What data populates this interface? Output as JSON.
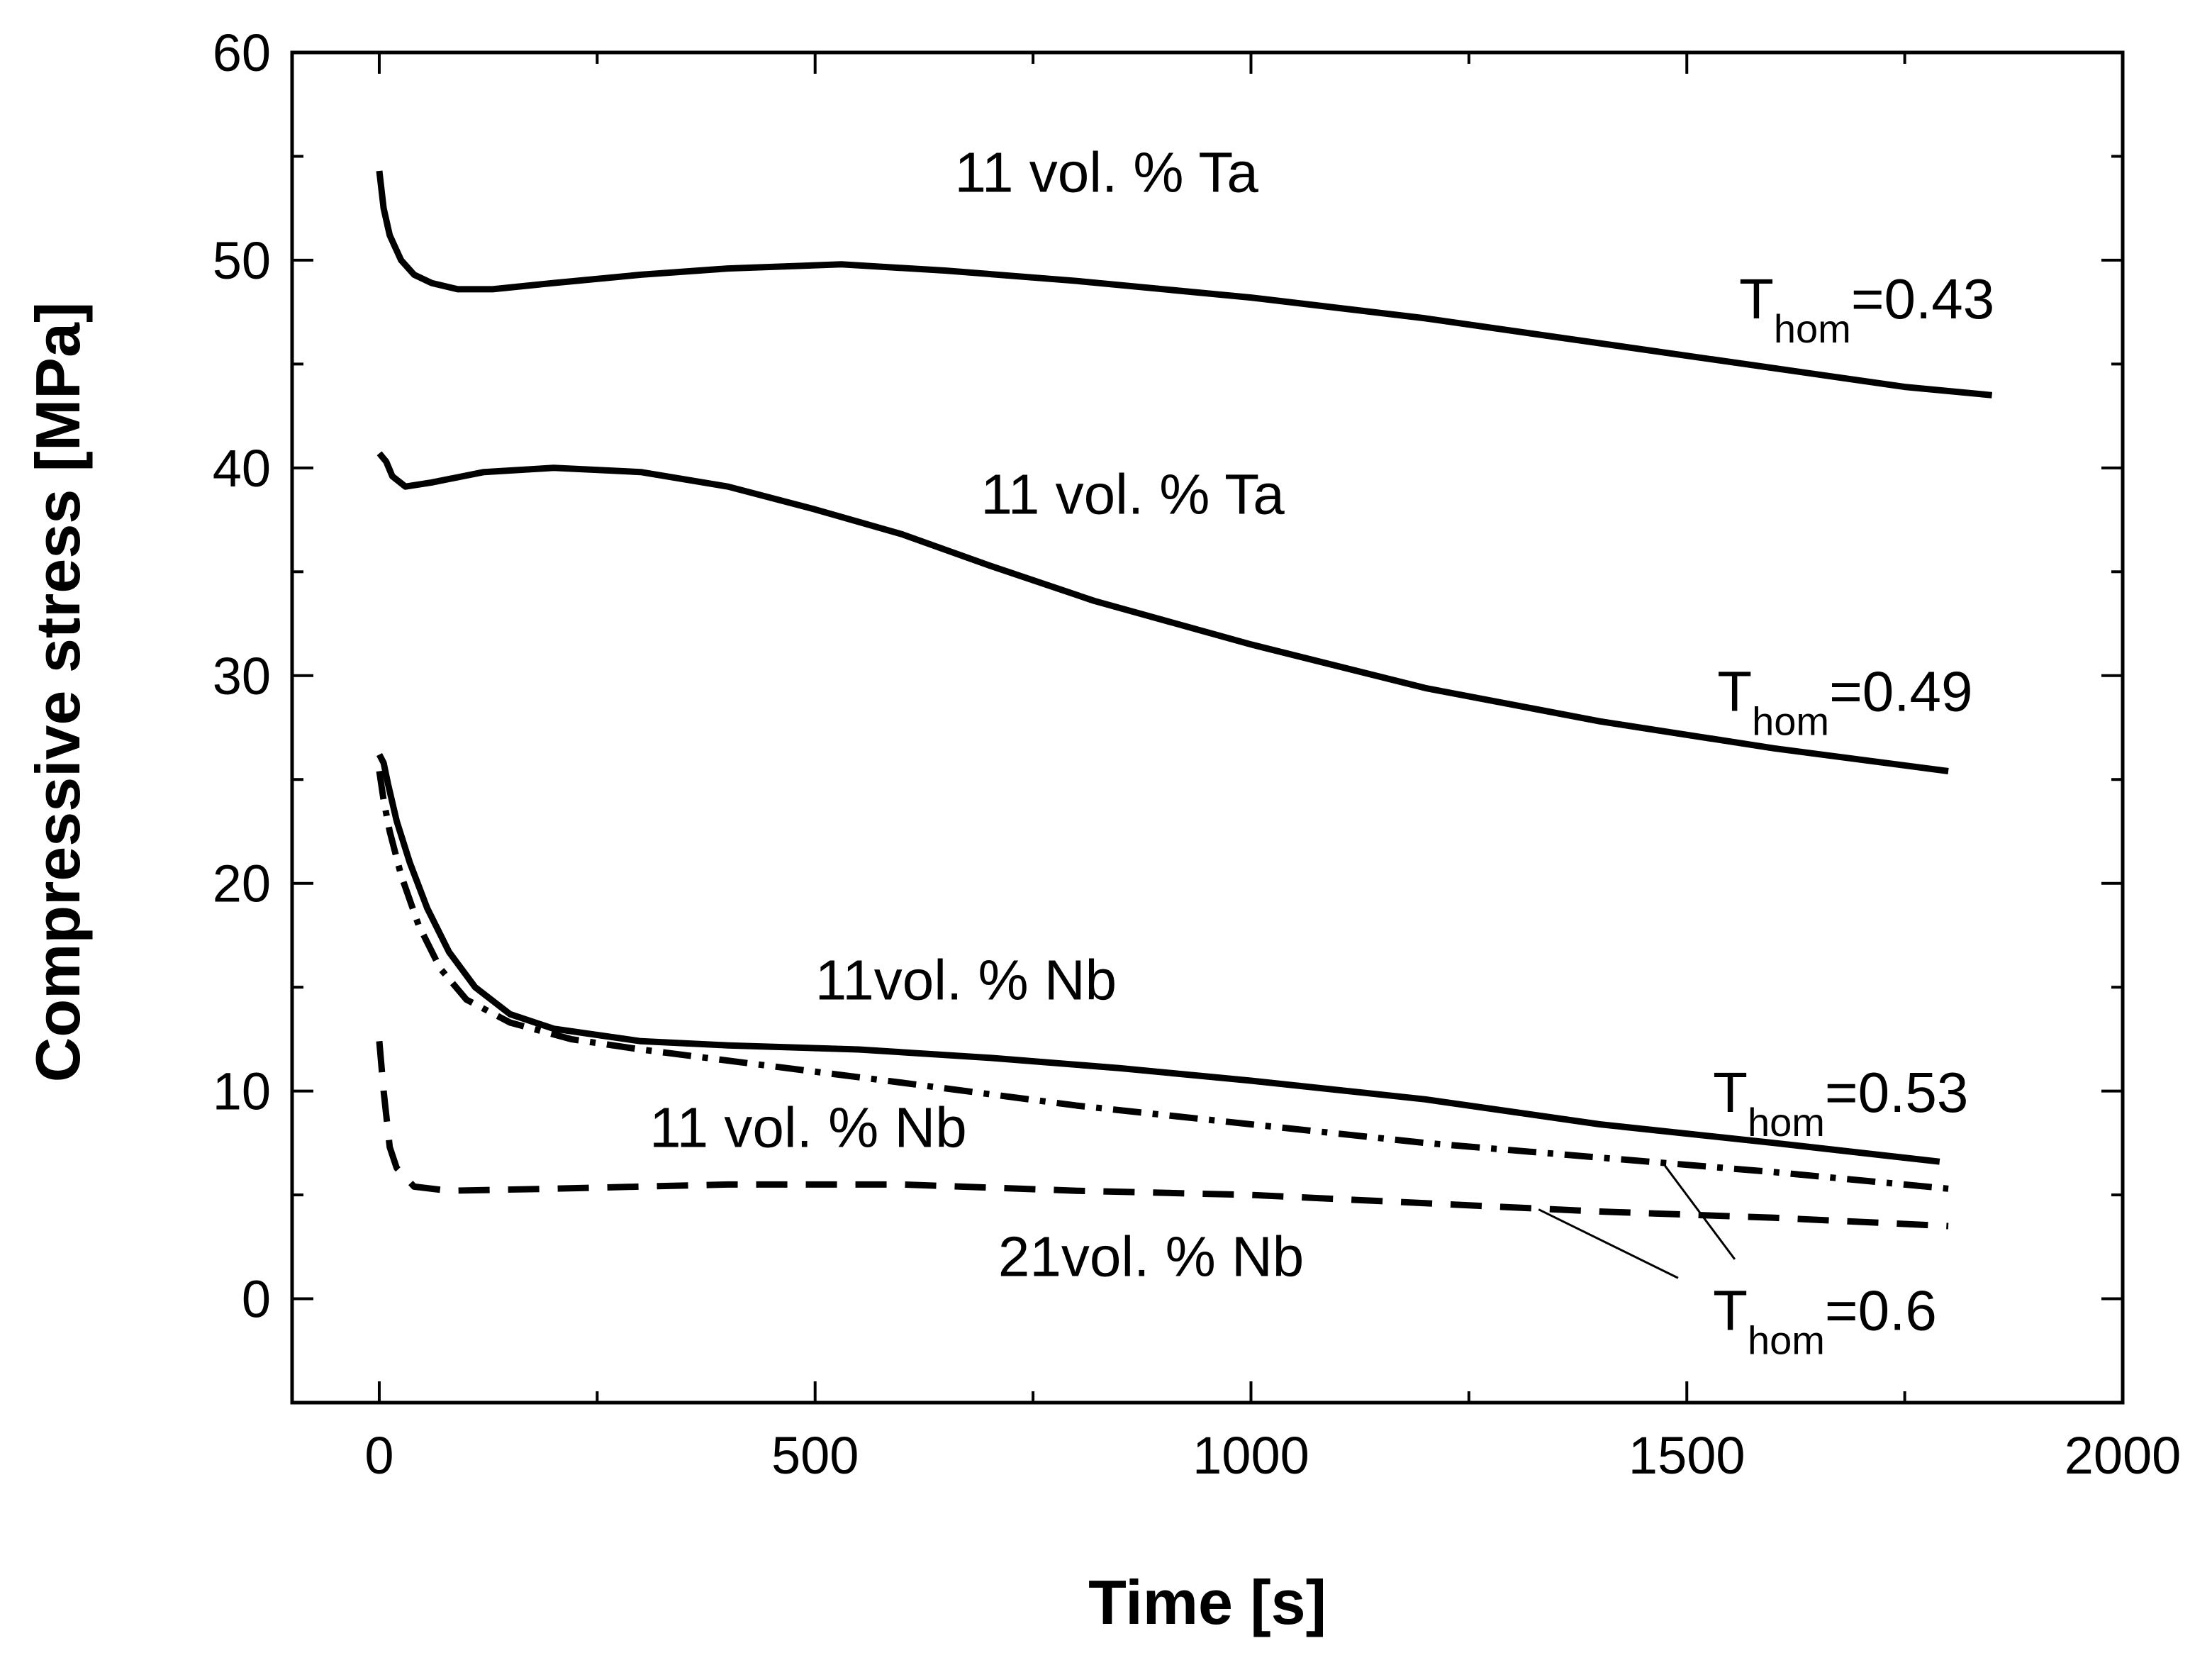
{
  "chart_data": {
    "type": "line",
    "xlabel": "Time [s]",
    "ylabel": "Compressive stress [MPa]",
    "xlim": [
      -100,
      2000
    ],
    "ylim": [
      -5,
      60
    ],
    "xticks": [
      0,
      500,
      1000,
      1500,
      2000
    ],
    "yticks": [
      0,
      10,
      20,
      30,
      40,
      50,
      60
    ],
    "grid": false,
    "legend": "none",
    "series": [
      {
        "style": "solid",
        "points": [
          [
            0,
            54.3
          ],
          [
            5,
            52.5
          ],
          [
            12,
            51.2
          ],
          [
            25,
            50.0
          ],
          [
            40,
            49.3
          ],
          [
            60,
            48.9
          ],
          [
            90,
            48.6
          ],
          [
            130,
            48.6
          ],
          [
            200,
            48.9
          ],
          [
            300,
            49.3
          ],
          [
            400,
            49.6
          ],
          [
            530,
            49.8
          ],
          [
            650,
            49.5
          ],
          [
            800,
            49.0
          ],
          [
            1000,
            48.2
          ],
          [
            1200,
            47.2
          ],
          [
            1400,
            46.0
          ],
          [
            1600,
            44.8
          ],
          [
            1750,
            43.9
          ],
          [
            1850,
            43.5
          ]
        ]
      },
      {
        "style": "solid",
        "points": [
          [
            0,
            40.7
          ],
          [
            8,
            40.3
          ],
          [
            15,
            39.6
          ],
          [
            30,
            39.1
          ],
          [
            60,
            39.3
          ],
          [
            120,
            39.8
          ],
          [
            200,
            40.0
          ],
          [
            300,
            39.8
          ],
          [
            400,
            39.1
          ],
          [
            500,
            38.0
          ],
          [
            600,
            36.8
          ],
          [
            700,
            35.3
          ],
          [
            820,
            33.6
          ],
          [
            1000,
            31.5
          ],
          [
            1200,
            29.4
          ],
          [
            1400,
            27.8
          ],
          [
            1600,
            26.5
          ],
          [
            1800,
            25.4
          ]
        ]
      },
      {
        "style": "solid",
        "points": [
          [
            0,
            26.2
          ],
          [
            5,
            25.8
          ],
          [
            10,
            24.8
          ],
          [
            20,
            23.0
          ],
          [
            35,
            21.0
          ],
          [
            55,
            18.8
          ],
          [
            80,
            16.7
          ],
          [
            110,
            15.0
          ],
          [
            150,
            13.7
          ],
          [
            200,
            13.0
          ],
          [
            300,
            12.4
          ],
          [
            400,
            12.2
          ],
          [
            550,
            12.0
          ],
          [
            700,
            11.6
          ],
          [
            850,
            11.1
          ],
          [
            1000,
            10.5
          ],
          [
            1200,
            9.6
          ],
          [
            1400,
            8.4
          ],
          [
            1600,
            7.5
          ],
          [
            1790,
            6.6
          ]
        ]
      },
      {
        "style": "dashdot",
        "points": [
          [
            0,
            25.4
          ],
          [
            5,
            24.0
          ],
          [
            12,
            22.5
          ],
          [
            25,
            20.4
          ],
          [
            45,
            18.0
          ],
          [
            70,
            15.9
          ],
          [
            100,
            14.4
          ],
          [
            150,
            13.3
          ],
          [
            220,
            12.5
          ],
          [
            300,
            12.0
          ],
          [
            450,
            11.2
          ],
          [
            600,
            10.4
          ],
          [
            800,
            9.3
          ],
          [
            1000,
            8.4
          ],
          [
            1200,
            7.5
          ],
          [
            1400,
            6.8
          ],
          [
            1600,
            6.1
          ],
          [
            1800,
            5.3
          ]
        ]
      },
      {
        "style": "dashed",
        "points": [
          [
            0,
            12.4
          ],
          [
            5,
            10.0
          ],
          [
            12,
            7.3
          ],
          [
            20,
            6.3
          ],
          [
            40,
            5.4
          ],
          [
            80,
            5.2
          ],
          [
            200,
            5.3
          ],
          [
            400,
            5.5
          ],
          [
            600,
            5.5
          ],
          [
            800,
            5.2
          ],
          [
            1000,
            5.0
          ],
          [
            1200,
            4.6
          ],
          [
            1400,
            4.2
          ],
          [
            1600,
            3.9
          ],
          [
            1800,
            3.5
          ]
        ]
      }
    ],
    "annotations": [
      {
        "text": "11 vol. % Ta",
        "x": 660,
        "y": 53.3
      },
      {
        "text": "T",
        "sub": "hom",
        "suffix": "=0.43",
        "x": 1560,
        "y": 47.2
      },
      {
        "text": "11 vol. % Ta",
        "x": 690,
        "y": 37.8
      },
      {
        "text": "T",
        "sub": "hom",
        "suffix": "=0.49",
        "x": 1535,
        "y": 28.3
      },
      {
        "text": "11vol. % Nb",
        "x": 500,
        "y": 14.4
      },
      {
        "text": "T",
        "sub": "hom",
        "suffix": "=0.53",
        "x": 1530,
        "y": 9.0
      },
      {
        "text": "11 vol. % Nb",
        "x": 310,
        "y": 7.3
      },
      {
        "text": "21vol. % Nb",
        "x": 710,
        "y": 1.1
      },
      {
        "text": "T",
        "sub": "hom",
        "suffix": "=0.6",
        "x": 1530,
        "y": -1.5
      }
    ],
    "leader_lines": [
      [
        [
          1490,
          1.0
        ],
        [
          1330,
          4.3
        ]
      ],
      [
        [
          1555,
          1.9
        ],
        [
          1475,
          6.4
        ]
      ]
    ]
  }
}
